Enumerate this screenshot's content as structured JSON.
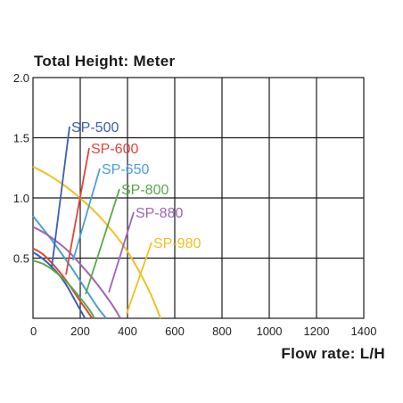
{
  "chart_data": {
    "type": "line",
    "title": "Total Height:  Meter",
    "xlabel": "Flow rate:  L/H",
    "xlim": [
      0,
      1400
    ],
    "ylim": [
      0,
      2.0
    ],
    "xticks": [
      "0",
      "200",
      "400",
      "600",
      "800",
      "1000",
      "1200",
      "1400"
    ],
    "yticks": [
      "2.0",
      "1.5",
      "1.0",
      "0.5"
    ],
    "grid": true,
    "series": [
      {
        "name": "SP-500",
        "color": "#3a5fb0",
        "x": [
          0,
          40,
          80,
          120,
          150,
          180,
          200,
          220
        ],
        "y": [
          0.55,
          0.5,
          0.43,
          0.34,
          0.25,
          0.14,
          0.07,
          0.0
        ]
      },
      {
        "name": "SP-600",
        "color": "#e0453a",
        "x": [
          0,
          40,
          80,
          120,
          160,
          200,
          230,
          250
        ],
        "y": [
          0.58,
          0.54,
          0.46,
          0.37,
          0.26,
          0.14,
          0.06,
          0.0
        ]
      },
      {
        "name": "SP-650",
        "color": "#4a9fd6",
        "x": [
          0,
          40,
          80,
          120,
          160,
          200,
          240,
          280,
          310
        ],
        "y": [
          0.85,
          0.75,
          0.65,
          0.54,
          0.43,
          0.31,
          0.19,
          0.07,
          0.0
        ]
      },
      {
        "name": "SP-800",
        "color": "#58a848",
        "x": [
          0,
          50,
          100,
          150,
          200,
          240,
          260
        ],
        "y": [
          0.48,
          0.45,
          0.38,
          0.29,
          0.17,
          0.07,
          0.0
        ]
      },
      {
        "name": "SP-880",
        "color": "#a063b8",
        "x": [
          0,
          50,
          100,
          150,
          200,
          250,
          300,
          340,
          370
        ],
        "y": [
          0.76,
          0.71,
          0.64,
          0.56,
          0.45,
          0.34,
          0.21,
          0.1,
          0.0
        ]
      },
      {
        "name": "SP-980",
        "color": "#f0c020",
        "x": [
          0,
          50,
          100,
          150,
          200,
          250,
          300,
          350,
          400,
          450,
          500,
          540
        ],
        "y": [
          1.26,
          1.21,
          1.15,
          1.08,
          1.0,
          0.91,
          0.81,
          0.69,
          0.56,
          0.39,
          0.2,
          0.0
        ]
      }
    ]
  }
}
